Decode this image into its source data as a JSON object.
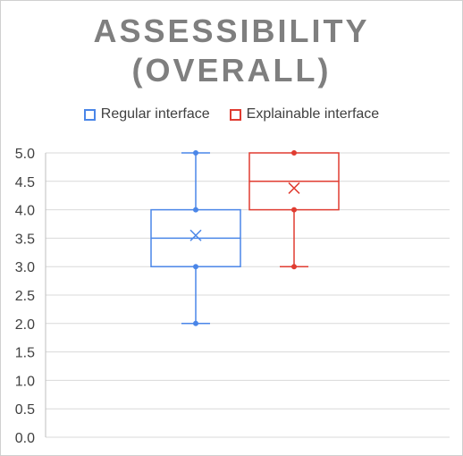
{
  "chart_data": {
    "type": "box",
    "title_lines": [
      "ASSESSIBILITY",
      "(OVERALL)"
    ],
    "ylim": [
      0,
      5
    ],
    "yticks": [
      "0.0",
      "0.5",
      "1.0",
      "1.5",
      "2.0",
      "2.5",
      "3.0",
      "3.5",
      "4.0",
      "4.5",
      "5.0"
    ],
    "grid": true,
    "legend_position": "top",
    "series": [
      {
        "name": "Regular interface",
        "color": "#4a86e8",
        "min": 2.0,
        "q1": 3.0,
        "median": 3.5,
        "q3": 4.0,
        "max": 5.0,
        "mean": 3.55,
        "points": [
          2.0,
          3.0,
          4.0,
          5.0
        ]
      },
      {
        "name": "Explainable interface",
        "color": "#e03c31",
        "min": 3.0,
        "q1": 4.0,
        "median": 4.5,
        "q3": 5.0,
        "max": 5.0,
        "mean": 4.38,
        "points": [
          3.0,
          4.0,
          5.0
        ]
      }
    ]
  }
}
